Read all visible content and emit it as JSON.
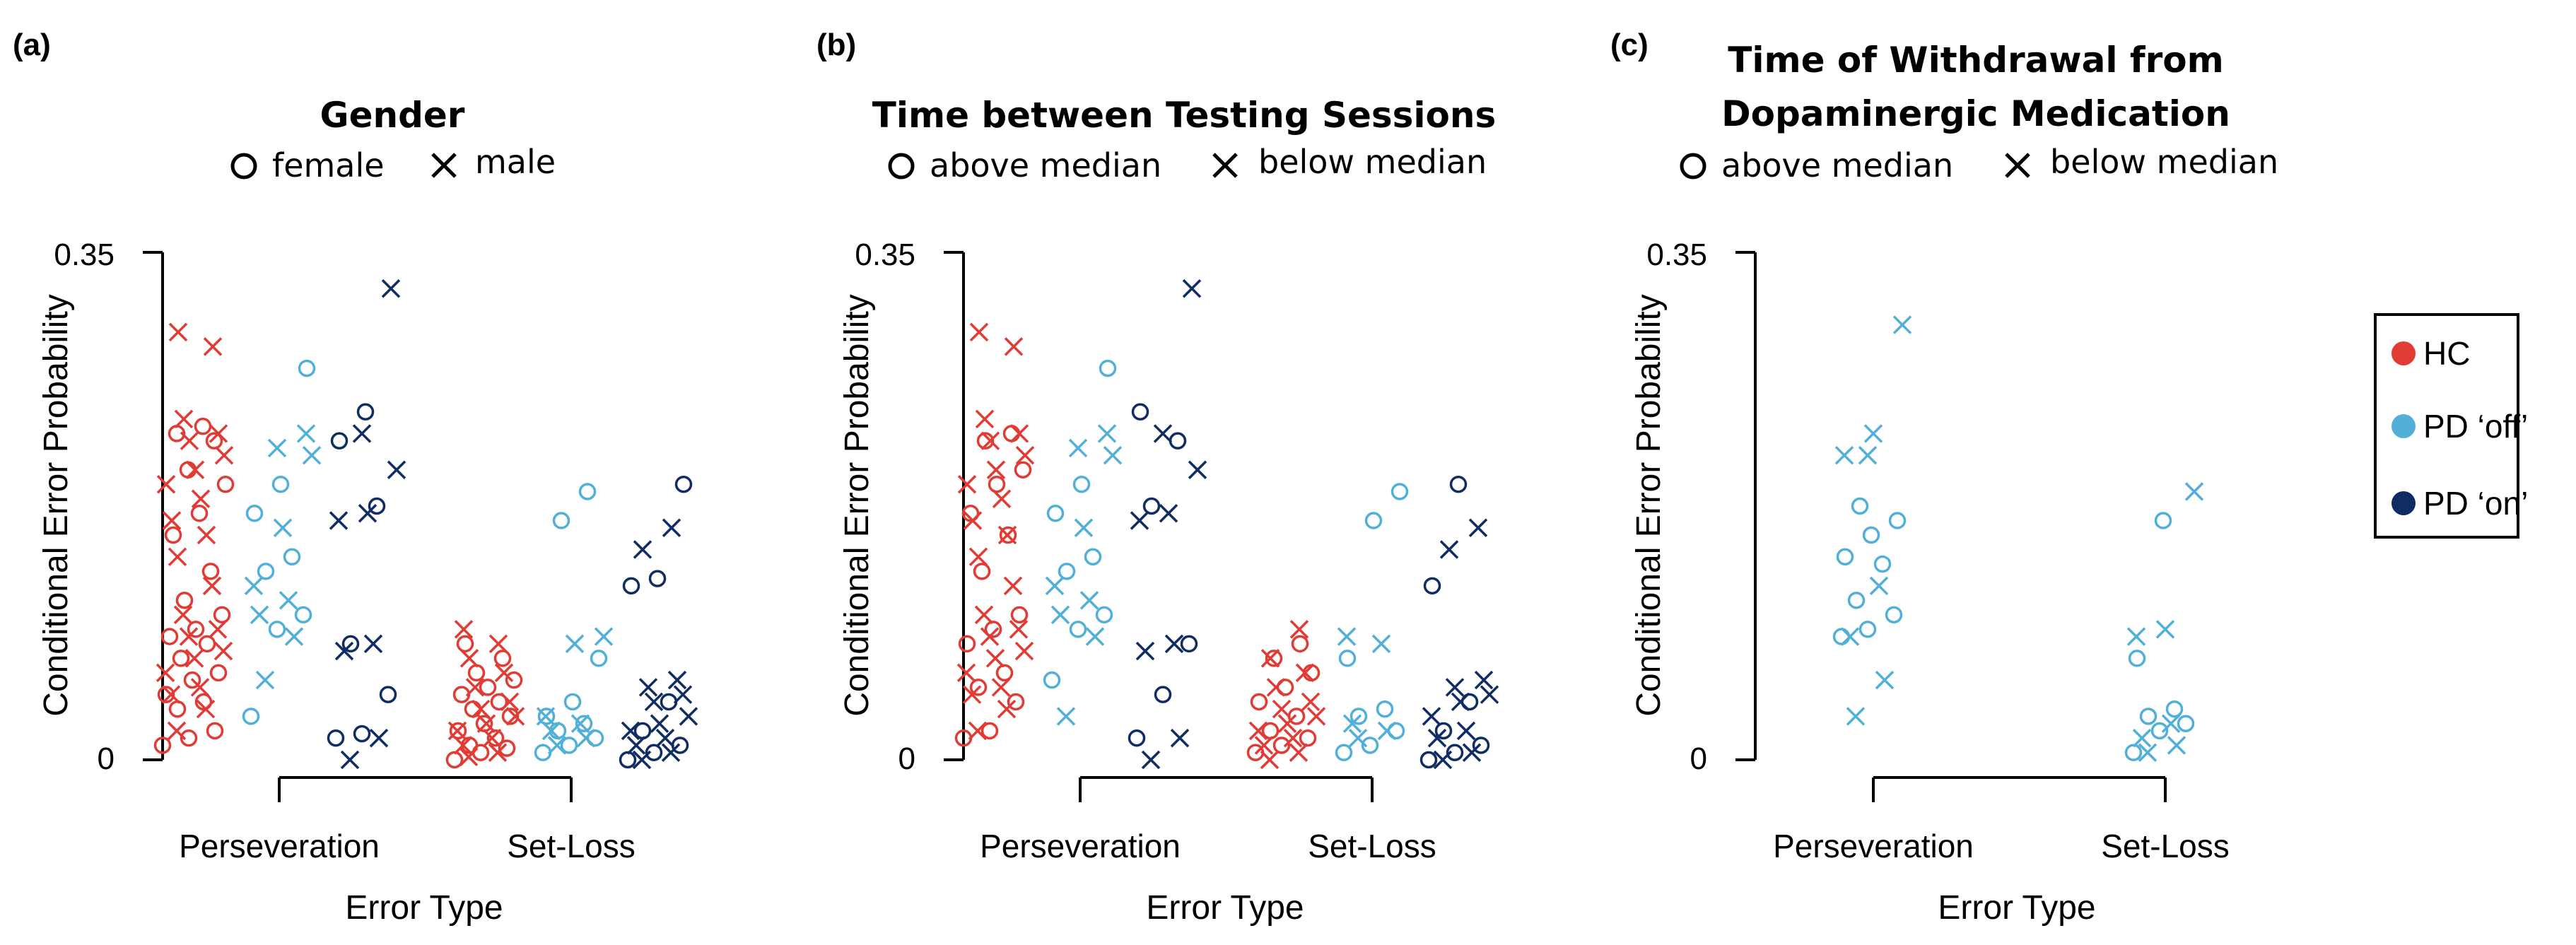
{
  "colors": {
    "HC": "#e03b34",
    "PD_off": "#52b0d8",
    "PD_on": "#0f2d63"
  },
  "group_legend": {
    "items": [
      {
        "key": "HC",
        "label": "HC"
      },
      {
        "key": "PD_off",
        "label": "PD ‘off’"
      },
      {
        "key": "PD_on",
        "label": "PD ‘on’"
      }
    ]
  },
  "chart_data": [
    {
      "type": "scatter",
      "panel": "(a)",
      "title_lines": [
        "Gender"
      ],
      "marker_legend": {
        "circle": "female",
        "cross": "male"
      },
      "xlabel": "Error Type",
      "ylabel": "Conditional Error Probability",
      "ylim": [
        0,
        0.35
      ],
      "yticks": [
        {
          "value": 0,
          "label": "0"
        },
        {
          "value": 0.35,
          "label": "0.35"
        }
      ],
      "categories": [
        "Perseveration",
        "Set-Loss"
      ],
      "series": [
        {
          "group": "HC",
          "category": "Perseveration",
          "circles": [
            0.01,
            0.015,
            0.02,
            0.035,
            0.04,
            0.045,
            0.055,
            0.06,
            0.07,
            0.08,
            0.085,
            0.09,
            0.1,
            0.11,
            0.13,
            0.155,
            0.17,
            0.19,
            0.2,
            0.22,
            0.225,
            0.23
          ],
          "crosses": [
            0.02,
            0.035,
            0.045,
            0.05,
            0.06,
            0.07,
            0.075,
            0.085,
            0.09,
            0.1,
            0.12,
            0.14,
            0.155,
            0.165,
            0.18,
            0.19,
            0.2,
            0.21,
            0.22,
            0.225,
            0.235,
            0.285,
            0.295
          ]
        },
        {
          "group": "PD_off",
          "category": "Perseveration",
          "circles": [
            0.03,
            0.09,
            0.1,
            0.13,
            0.14,
            0.17,
            0.19,
            0.27
          ],
          "crosses": [
            0.055,
            0.085,
            0.1,
            0.11,
            0.12,
            0.16,
            0.21,
            0.215,
            0.225
          ]
        },
        {
          "group": "PD_on",
          "category": "Perseveration",
          "circles": [
            0.015,
            0.018,
            0.045,
            0.08,
            0.175,
            0.22,
            0.24
          ],
          "crosses": [
            0.0,
            0.015,
            0.075,
            0.08,
            0.165,
            0.17,
            0.2,
            0.225,
            0.325
          ]
        },
        {
          "group": "HC",
          "category": "Set-Loss",
          "circles": [
            0.0,
            0.005,
            0.008,
            0.01,
            0.015,
            0.02,
            0.025,
            0.03,
            0.035,
            0.04,
            0.045,
            0.05,
            0.055,
            0.06,
            0.07,
            0.08
          ],
          "crosses": [
            0.002,
            0.005,
            0.01,
            0.015,
            0.02,
            0.025,
            0.03,
            0.035,
            0.04,
            0.05,
            0.06,
            0.07,
            0.08,
            0.09
          ]
        },
        {
          "group": "PD_off",
          "category": "Set-Loss",
          "circles": [
            0.005,
            0.01,
            0.015,
            0.02,
            0.025,
            0.03,
            0.04,
            0.07,
            0.165,
            0.185
          ],
          "crosses": [
            0.01,
            0.015,
            0.02,
            0.025,
            0.03,
            0.08,
            0.085
          ]
        },
        {
          "group": "PD_on",
          "category": "Set-Loss",
          "circles": [
            0.0,
            0.005,
            0.01,
            0.02,
            0.04,
            0.12,
            0.125,
            0.19
          ],
          "crosses": [
            0.0,
            0.005,
            0.01,
            0.015,
            0.02,
            0.025,
            0.03,
            0.04,
            0.045,
            0.05,
            0.055,
            0.145,
            0.16
          ]
        }
      ]
    },
    {
      "type": "scatter",
      "panel": "(b)",
      "title_lines": [
        "Time between Testing Sessions"
      ],
      "marker_legend": {
        "circle": "above median",
        "cross": "below median"
      },
      "xlabel": "Error Type",
      "ylabel": "Conditional Error Probability",
      "ylim": [
        0,
        0.35
      ],
      "yticks": [
        {
          "value": 0,
          "label": "0"
        },
        {
          "value": 0.35,
          "label": "0.35"
        }
      ],
      "categories": [
        "Perseveration",
        "Set-Loss"
      ],
      "series": [
        {
          "group": "HC",
          "category": "Perseveration",
          "circles": [
            0.015,
            0.02,
            0.04,
            0.05,
            0.06,
            0.08,
            0.09,
            0.1,
            0.13,
            0.155,
            0.17,
            0.19,
            0.2,
            0.22,
            0.225
          ],
          "crosses": [
            0.02,
            0.035,
            0.045,
            0.05,
            0.06,
            0.07,
            0.075,
            0.085,
            0.09,
            0.1,
            0.12,
            0.14,
            0.155,
            0.165,
            0.18,
            0.19,
            0.2,
            0.21,
            0.22,
            0.225,
            0.235,
            0.285,
            0.295
          ]
        },
        {
          "group": "PD_off",
          "category": "Perseveration",
          "circles": [
            0.055,
            0.09,
            0.1,
            0.13,
            0.14,
            0.17,
            0.19,
            0.27
          ],
          "crosses": [
            0.03,
            0.085,
            0.1,
            0.11,
            0.12,
            0.16,
            0.21,
            0.215,
            0.225
          ]
        },
        {
          "group": "PD_on",
          "category": "Perseveration",
          "circles": [
            0.015,
            0.045,
            0.08,
            0.175,
            0.22,
            0.24
          ],
          "crosses": [
            0.0,
            0.015,
            0.075,
            0.08,
            0.165,
            0.17,
            0.2,
            0.225,
            0.325
          ]
        },
        {
          "group": "HC",
          "category": "Set-Loss",
          "circles": [
            0.005,
            0.01,
            0.015,
            0.02,
            0.03,
            0.04,
            0.05,
            0.06,
            0.07,
            0.08
          ],
          "crosses": [
            0.0,
            0.005,
            0.01,
            0.015,
            0.02,
            0.025,
            0.03,
            0.035,
            0.04,
            0.05,
            0.06,
            0.07,
            0.09
          ]
        },
        {
          "group": "PD_off",
          "category": "Set-Loss",
          "circles": [
            0.005,
            0.01,
            0.02,
            0.03,
            0.035,
            0.07,
            0.165,
            0.185
          ],
          "crosses": [
            0.015,
            0.02,
            0.025,
            0.08,
            0.085
          ]
        },
        {
          "group": "PD_on",
          "category": "Set-Loss",
          "circles": [
            0.0,
            0.005,
            0.01,
            0.02,
            0.04,
            0.12,
            0.19
          ],
          "crosses": [
            0.0,
            0.005,
            0.015,
            0.02,
            0.03,
            0.04,
            0.045,
            0.05,
            0.055,
            0.145,
            0.16
          ]
        }
      ]
    },
    {
      "type": "scatter",
      "panel": "(c)",
      "title_lines": [
        "Time of Withdrawal from",
        "Dopaminergic Medication"
      ],
      "marker_legend": {
        "circle": "above median",
        "cross": "below median"
      },
      "xlabel": "Error Type",
      "ylabel": "Conditional Error Probability",
      "ylim": [
        0,
        0.35
      ],
      "yticks": [
        {
          "value": 0,
          "label": "0"
        },
        {
          "value": 0.35,
          "label": "0.35"
        }
      ],
      "categories": [
        "Perseveration",
        "Set-Loss"
      ],
      "series": [
        {
          "group": "PD_off",
          "category": "Perseveration",
          "circles": [
            0.085,
            0.09,
            0.1,
            0.11,
            0.135,
            0.14,
            0.155,
            0.165,
            0.175
          ],
          "crosses": [
            0.03,
            0.055,
            0.085,
            0.12,
            0.21,
            0.225,
            0.3,
            0.21
          ]
        },
        {
          "group": "PD_off",
          "category": "Set-Loss",
          "circles": [
            0.005,
            0.02,
            0.025,
            0.03,
            0.035,
            0.07,
            0.165
          ],
          "crosses": [
            0.005,
            0.01,
            0.015,
            0.025,
            0.085,
            0.09,
            0.185
          ]
        }
      ]
    }
  ]
}
